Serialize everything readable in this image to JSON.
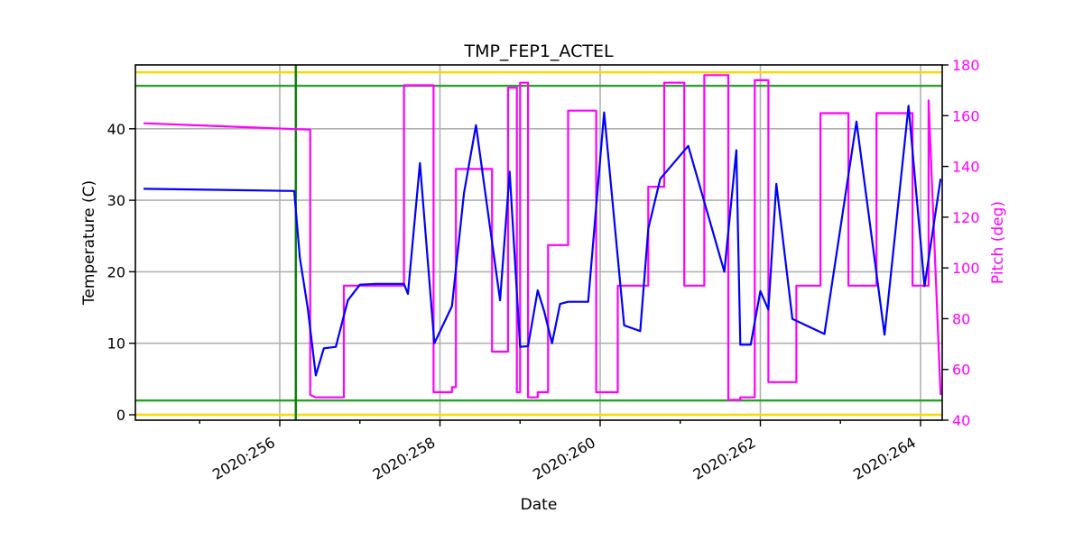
{
  "chart_data": {
    "type": "line",
    "title": "TMP_FEP1_ACTEL",
    "xlabel": "Date",
    "ylabel": "Temperature (C)",
    "ylabel_right": "Pitch (deg)",
    "xlim": [
      254.3,
      264.25
    ],
    "ylim": [
      -1,
      48.7
    ],
    "ylim_right": [
      40,
      180
    ],
    "grid": true,
    "x_ticks": [
      {
        "value": 256,
        "label": "2020:256"
      },
      {
        "value": 258,
        "label": "2020:258"
      },
      {
        "value": 260,
        "label": "2020:260"
      },
      {
        "value": 262,
        "label": "2020:262"
      },
      {
        "value": 264,
        "label": "2020:264"
      }
    ],
    "x_minor_ticks": [
      255,
      257,
      259,
      261,
      263
    ],
    "y_ticks": [
      0,
      10,
      20,
      30,
      40
    ],
    "y_ticks_right": [
      40,
      60,
      80,
      100,
      120,
      140,
      160,
      180
    ],
    "reference_lines": [
      {
        "name": "planning-limit-high",
        "axis": "left",
        "y": 46,
        "color": "#2ca02c"
      },
      {
        "name": "planning-limit-low",
        "axis": "left",
        "y": 2,
        "color": "#2ca02c"
      },
      {
        "name": "yellow-limit-high",
        "axis": "left",
        "y": 47.9,
        "color": "#ffd700"
      },
      {
        "name": "yellow-limit-low",
        "axis": "left",
        "y": 0,
        "color": "#ffd700"
      },
      {
        "name": "now-marker",
        "axis": "x",
        "x": 256.2,
        "color": "#008000"
      }
    ],
    "series": [
      {
        "name": "TMP_FEP1_ACTEL",
        "axis": "left",
        "color": "#0000ff",
        "x": [
          254.3,
          256.18,
          256.25,
          256.35,
          256.45,
          256.55,
          256.7,
          256.85,
          257.0,
          257.2,
          257.55,
          257.6,
          257.75,
          257.93,
          258.15,
          258.3,
          258.45,
          258.75,
          258.87,
          259.0,
          259.1,
          259.22,
          259.3,
          259.4,
          259.5,
          259.6,
          259.85,
          260.05,
          260.3,
          260.5,
          260.6,
          260.75,
          261.1,
          261.55,
          261.7,
          261.75,
          261.88,
          262.0,
          262.1,
          262.2,
          262.4,
          262.8,
          263.2,
          263.55,
          263.85,
          264.05,
          264.25
        ],
        "values": [
          31.6,
          31.3,
          22,
          14.8,
          5.5,
          9.3,
          9.5,
          16,
          18.2,
          18.3,
          18.3,
          16.9,
          35.2,
          10.0,
          15.2,
          31,
          40.5,
          16,
          34,
          9.5,
          9.6,
          17.4,
          14.5,
          10.0,
          15.5,
          15.8,
          15.8,
          42.3,
          12.5,
          11.7,
          26,
          33,
          37.6,
          20,
          37,
          9.8,
          9.8,
          17.3,
          14.7,
          32.3,
          13.4,
          11.3,
          41,
          11.2,
          43.2,
          18,
          33
        ]
      },
      {
        "name": "Pitch",
        "axis": "right",
        "color": "#ff00ff",
        "x": [
          254.3,
          256.38,
          256.38,
          256.45,
          256.8,
          256.8,
          257.55,
          257.55,
          257.92,
          257.92,
          258.15,
          258.15,
          258.2,
          258.2,
          258.65,
          258.65,
          258.85,
          258.85,
          258.96,
          258.96,
          259.0,
          259.0,
          259.1,
          259.1,
          259.22,
          259.22,
          259.35,
          259.35,
          259.6,
          259.6,
          259.95,
          259.95,
          260.22,
          260.22,
          260.6,
          260.6,
          260.8,
          260.8,
          261.05,
          261.05,
          261.3,
          261.3,
          261.6,
          261.6,
          261.75,
          261.75,
          261.93,
          261.93,
          262.1,
          262.1,
          262.45,
          262.45,
          262.75,
          262.75,
          263.1,
          263.1,
          263.45,
          263.45,
          263.9,
          263.9,
          264.1,
          264.1,
          264.25
        ],
        "values": [
          157,
          154.5,
          50,
          49,
          49,
          93,
          93,
          172,
          172,
          51,
          51,
          53,
          53,
          139,
          139,
          67,
          67,
          171,
          171,
          51,
          51,
          173,
          173,
          49,
          49,
          51,
          51,
          109,
          109,
          162,
          162,
          51,
          51,
          93,
          93,
          132,
          132,
          173,
          173,
          93,
          93,
          176,
          176,
          48,
          48,
          49,
          49,
          174,
          174,
          55,
          55,
          93,
          93,
          161,
          161,
          93,
          93,
          161,
          161,
          93,
          93,
          166,
          50
        ]
      }
    ]
  },
  "page": {
    "title": "TMP_FEP1_ACTEL",
    "xlabel": "Date",
    "ylabel_left": "Temperature (C)",
    "ylabel_right": "Pitch (deg)",
    "y_left_labels": [
      "0",
      "10",
      "20",
      "30",
      "40"
    ],
    "y_right_labels": [
      "40",
      "60",
      "80",
      "100",
      "120",
      "140",
      "160",
      "180"
    ],
    "x_labels": [
      "2020:256",
      "2020:258",
      "2020:260",
      "2020:262",
      "2020:264"
    ]
  }
}
